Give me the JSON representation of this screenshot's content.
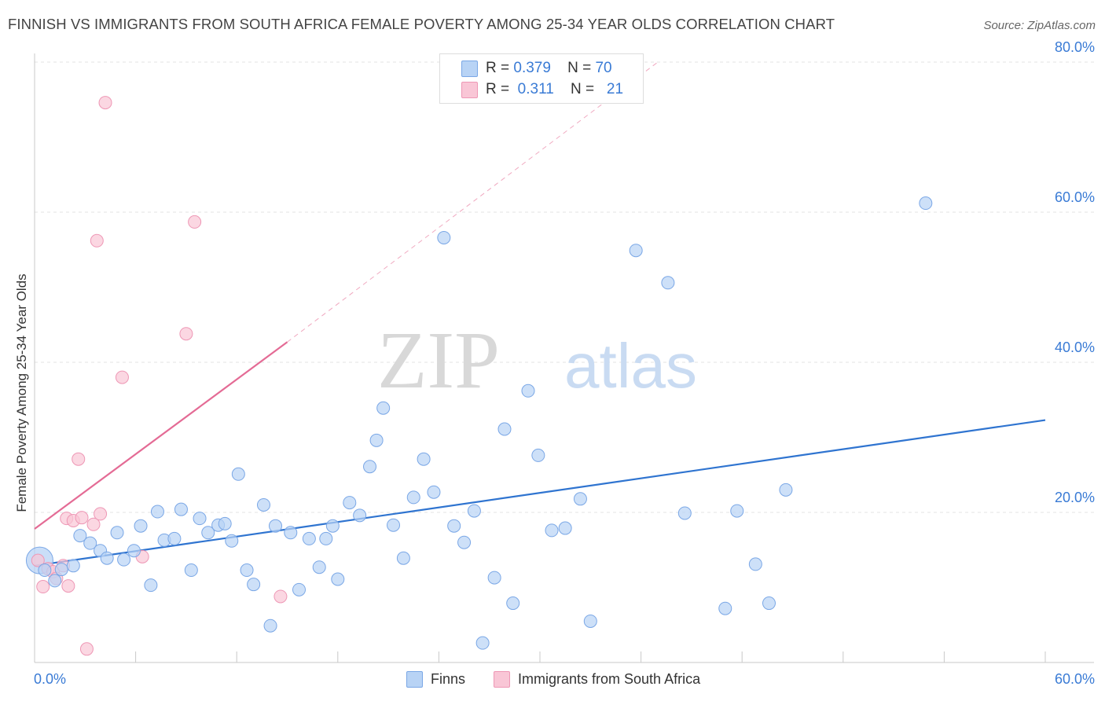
{
  "title": "FINNISH VS IMMIGRANTS FROM SOUTH AFRICA FEMALE POVERTY AMONG 25-34 YEAR OLDS CORRELATION CHART",
  "source": "Source: ZipAtlas.com",
  "watermark": {
    "part1": "ZIP",
    "part2": "atlas"
  },
  "legend": {
    "rows": [
      {
        "r_label": "R =",
        "r_value": "0.379",
        "n_label": "N =",
        "n_value": "70"
      },
      {
        "r_label": "R =",
        "r_value": "0.311",
        "n_label": "N =",
        "n_value": "21"
      }
    ]
  },
  "bottom_legend": {
    "finns": "Finns",
    "immigrants": "Immigrants from South Africa"
  },
  "colors": {
    "finns_fill": "#b8d3f5",
    "finns_stroke": "#7aa7e6",
    "finns_line": "#2f74d0",
    "imm_fill": "#f9c6d6",
    "imm_stroke": "#ee97b5",
    "imm_line": "#e46b95",
    "axis_label": "#3a7bd5",
    "grid": "#e3e3e3"
  },
  "chart_data": {
    "type": "scatter",
    "xlabel": "",
    "ylabel": "Female Poverty Among 25-34 Year Olds",
    "xlim": [
      0,
      60
    ],
    "ylim": [
      0,
      80
    ],
    "x_tick_labels": [
      "0.0%",
      "60.0%"
    ],
    "y_tick_labels": [
      "20.0%",
      "40.0%",
      "60.0%",
      "80.0%"
    ],
    "y_ticks": [
      20,
      40,
      60,
      80
    ],
    "grid": "horizontal dashed",
    "legend_position": "top-center",
    "series": [
      {
        "name": "Finns",
        "r": 0.379,
        "n": 70,
        "trend": {
          "x": [
            0,
            60
          ],
          "y": [
            12.9,
            32.3
          ],
          "style": "solid"
        },
        "points": [
          [
            0.3,
            13.6
          ],
          [
            0.6,
            12.3
          ],
          [
            1.2,
            10.9
          ],
          [
            1.6,
            12.4
          ],
          [
            2.3,
            12.9
          ],
          [
            2.7,
            16.9
          ],
          [
            3.3,
            15.9
          ],
          [
            3.9,
            14.9
          ],
          [
            4.3,
            13.9
          ],
          [
            4.9,
            17.3
          ],
          [
            5.3,
            13.7
          ],
          [
            5.9,
            14.9
          ],
          [
            6.3,
            18.2
          ],
          [
            6.9,
            10.3
          ],
          [
            7.3,
            20.1
          ],
          [
            7.7,
            16.3
          ],
          [
            8.3,
            16.5
          ],
          [
            8.7,
            20.4
          ],
          [
            9.3,
            12.3
          ],
          [
            9.8,
            19.2
          ],
          [
            10.3,
            17.3
          ],
          [
            10.9,
            18.3
          ],
          [
            11.3,
            18.5
          ],
          [
            11.7,
            16.2
          ],
          [
            12.1,
            25.1
          ],
          [
            12.6,
            12.3
          ],
          [
            13.0,
            10.4
          ],
          [
            13.6,
            21.0
          ],
          [
            14.0,
            4.9
          ],
          [
            14.3,
            18.2
          ],
          [
            15.2,
            17.3
          ],
          [
            15.7,
            9.7
          ],
          [
            16.3,
            16.5
          ],
          [
            16.9,
            12.7
          ],
          [
            17.3,
            16.5
          ],
          [
            17.7,
            18.2
          ],
          [
            18.0,
            11.1
          ],
          [
            18.7,
            21.3
          ],
          [
            19.3,
            19.6
          ],
          [
            19.9,
            26.1
          ],
          [
            20.3,
            29.6
          ],
          [
            20.7,
            33.9
          ],
          [
            21.3,
            18.3
          ],
          [
            21.9,
            13.9
          ],
          [
            22.5,
            22.0
          ],
          [
            23.1,
            27.1
          ],
          [
            23.7,
            22.7
          ],
          [
            24.3,
            56.6
          ],
          [
            24.9,
            18.2
          ],
          [
            25.5,
            16.0
          ],
          [
            26.1,
            20.2
          ],
          [
            26.6,
            2.6
          ],
          [
            27.3,
            11.3
          ],
          [
            27.9,
            31.1
          ],
          [
            28.4,
            7.9
          ],
          [
            29.3,
            36.2
          ],
          [
            29.9,
            27.6
          ],
          [
            30.7,
            17.6
          ],
          [
            31.5,
            17.9
          ],
          [
            32.4,
            21.8
          ],
          [
            33.0,
            5.5
          ],
          [
            35.7,
            54.9
          ],
          [
            37.6,
            50.6
          ],
          [
            38.6,
            19.9
          ],
          [
            41.0,
            7.2
          ],
          [
            41.7,
            20.2
          ],
          [
            42.8,
            13.1
          ],
          [
            43.6,
            7.9
          ],
          [
            44.6,
            23.0
          ],
          [
            52.9,
            61.2
          ]
        ]
      },
      {
        "name": "Immigrants from South Africa",
        "r": 0.311,
        "n": 21,
        "trend": {
          "x": [
            0,
            15
          ],
          "y": [
            17.8,
            42.7
          ],
          "style": "solid",
          "extended_to": [
            37,
            80
          ],
          "extended_style": "dashed"
        },
        "points": [
          [
            0.2,
            13.6
          ],
          [
            0.5,
            10.1
          ],
          [
            0.8,
            12.5
          ],
          [
            1.1,
            12.1
          ],
          [
            1.3,
            11.2
          ],
          [
            1.7,
            12.9
          ],
          [
            1.9,
            19.2
          ],
          [
            2.0,
            10.2
          ],
          [
            2.3,
            18.9
          ],
          [
            2.6,
            27.1
          ],
          [
            2.8,
            19.3
          ],
          [
            3.1,
            1.8
          ],
          [
            3.5,
            18.4
          ],
          [
            3.7,
            56.2
          ],
          [
            3.9,
            19.8
          ],
          [
            4.2,
            74.6
          ],
          [
            5.2,
            38.0
          ],
          [
            6.4,
            14.1
          ],
          [
            9.0,
            43.8
          ],
          [
            9.5,
            58.7
          ],
          [
            14.6,
            8.8
          ]
        ]
      }
    ]
  }
}
